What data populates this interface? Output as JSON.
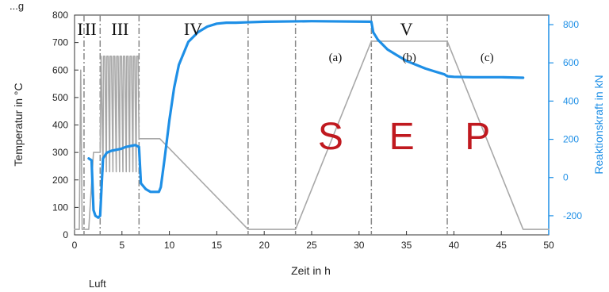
{
  "header": {
    "caption": "...g"
  },
  "footer": {
    "caption": "Luft"
  },
  "chart_data": {
    "type": "line",
    "xlabel": "Zeit in h",
    "ylabel": "Temperatur in °C",
    "ylabel_right": "Reaktionskraft in kN",
    "xlim": [
      0,
      50
    ],
    "ylim": [
      0,
      800
    ],
    "ylim_right": [
      -300,
      850
    ],
    "x_ticks": [
      "0",
      "5",
      "10",
      "15",
      "20",
      "25",
      "30",
      "35",
      "40",
      "45",
      "50"
    ],
    "y_ticks": [
      "0",
      "100",
      "200",
      "300",
      "400",
      "500",
      "600",
      "700",
      "800"
    ],
    "y_right_ticks": [
      "-200",
      "0",
      "200",
      "400",
      "600",
      "800"
    ],
    "phase_lines_x": [
      1.0,
      2.7,
      6.8,
      18.3,
      23.3,
      31.3,
      39.3
    ],
    "phases": [
      {
        "label": "I",
        "x": 0.6
      },
      {
        "label": "II",
        "x": 1.7
      },
      {
        "label": "III",
        "x": 4.8
      },
      {
        "label": "IV",
        "x": 12.5
      },
      {
        "label": "V",
        "x": 35.0
      }
    ],
    "sub_labels": [
      {
        "label": "(a)",
        "x": 27.5
      },
      {
        "label": "(b)",
        "x": 35.3
      },
      {
        "label": "(c)",
        "x": 43.5
      }
    ],
    "big_labels": [
      {
        "label": "S",
        "x": 27.0
      },
      {
        "label": "E",
        "x": 34.5
      },
      {
        "label": "P",
        "x": 42.5
      }
    ],
    "colors": {
      "temperature": "#a8a8a8",
      "force": "#1e8fe6",
      "big_labels": "#c0191f"
    },
    "series": [
      {
        "axis": "left",
        "x": [
          0,
          0.5,
          0.65,
          0.8,
          1.0,
          1.3,
          1.5,
          2.0,
          2.5,
          2.7,
          2.8,
          3.0,
          3.05,
          3.2,
          3.35,
          3.4,
          3.55,
          3.7,
          3.75,
          3.9,
          4.05,
          4.1,
          4.25,
          4.4,
          4.45,
          4.6,
          4.75,
          4.8,
          4.95,
          5.1,
          5.15,
          5.3,
          5.45,
          5.5,
          5.65,
          5.8,
          5.85,
          6.0,
          6.15,
          6.2,
          6.35,
          6.5,
          6.55,
          6.7,
          6.8,
          9.0,
          18.3,
          23.3,
          31.3,
          39.3,
          47.3,
          50
        ],
        "values": [
          20,
          20,
          600,
          20,
          20,
          20,
          20,
          300,
          300,
          300,
          650,
          230,
          650,
          650,
          230,
          650,
          650,
          230,
          650,
          650,
          230,
          650,
          650,
          230,
          650,
          650,
          230,
          650,
          650,
          230,
          650,
          650,
          230,
          650,
          650,
          230,
          650,
          650,
          230,
          650,
          650,
          230,
          650,
          650,
          350,
          350,
          20,
          20,
          705,
          705,
          20,
          20
        ]
      },
      {
        "axis": "right",
        "x": [
          1.5,
          1.8,
          2.0,
          2.2,
          2.5,
          2.7,
          3.0,
          3.4,
          3.9,
          4.4,
          4.9,
          5.4,
          5.9,
          6.4,
          6.8,
          7.0,
          7.5,
          8.0,
          8.5,
          8.9,
          9.1,
          9.5,
          10.0,
          10.5,
          11.0,
          12.0,
          13.0,
          14.0,
          15.0,
          16.0,
          17.0,
          18.0,
          20.0,
          25.0,
          31.3,
          31.5,
          32.0,
          33.0,
          34.0,
          35.0,
          36.0,
          37.0,
          38.0,
          39.0,
          39.3,
          40.0,
          42.0,
          45.0,
          47.3
        ],
        "values": [
          100,
          90,
          -170,
          -200,
          -210,
          -200,
          100,
          130,
          140,
          145,
          150,
          160,
          165,
          170,
          160,
          -30,
          -60,
          -75,
          -75,
          -75,
          -50,
          100,
          300,
          470,
          590,
          710,
          760,
          790,
          805,
          810,
          810,
          812,
          815,
          818,
          815,
          760,
          720,
          670,
          640,
          610,
          590,
          570,
          555,
          540,
          530,
          527,
          525,
          525,
          522
        ]
      }
    ]
  }
}
